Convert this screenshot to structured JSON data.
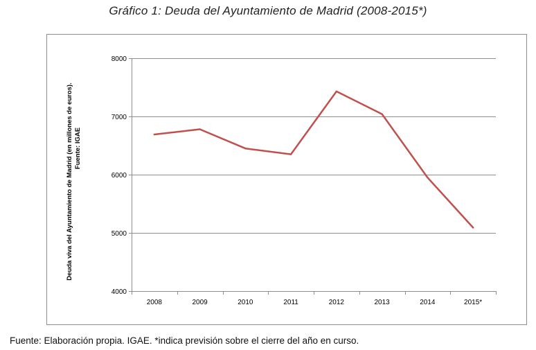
{
  "title": "Gráfico 1: Deuda del Ayuntamiento de Madrid (2008-2015*)",
  "footnote": "Fuente: Elaboración propia. IGAE. *indica previsión sobre el cierre del año en curso.",
  "colors": {
    "line": "#c0504d",
    "grid": "#8c8c8c",
    "frame": "#8c8c8c"
  },
  "chart_data": {
    "type": "line",
    "title": "Gráfico 1: Deuda del Ayuntamiento de Madrid (2008-2015*)",
    "xlabel": "",
    "ylabel": "Deuda viva del Ayuntamiento de Madrid  (en millones de euros).",
    "ylabel2": "Fuente: IGAE",
    "categories": [
      "2008",
      "2009",
      "2010",
      "2011",
      "2012",
      "2013",
      "2014",
      "2015*"
    ],
    "series": [
      {
        "name": "Deuda viva",
        "values": [
          6690,
          6780,
          6450,
          6350,
          7430,
          7040,
          5950,
          5090
        ]
      }
    ],
    "ylim": [
      4000,
      8000
    ],
    "yticks": [
      "4000",
      "5000",
      "6000",
      "7000",
      "8000"
    ],
    "grid": true,
    "legend": "none"
  }
}
